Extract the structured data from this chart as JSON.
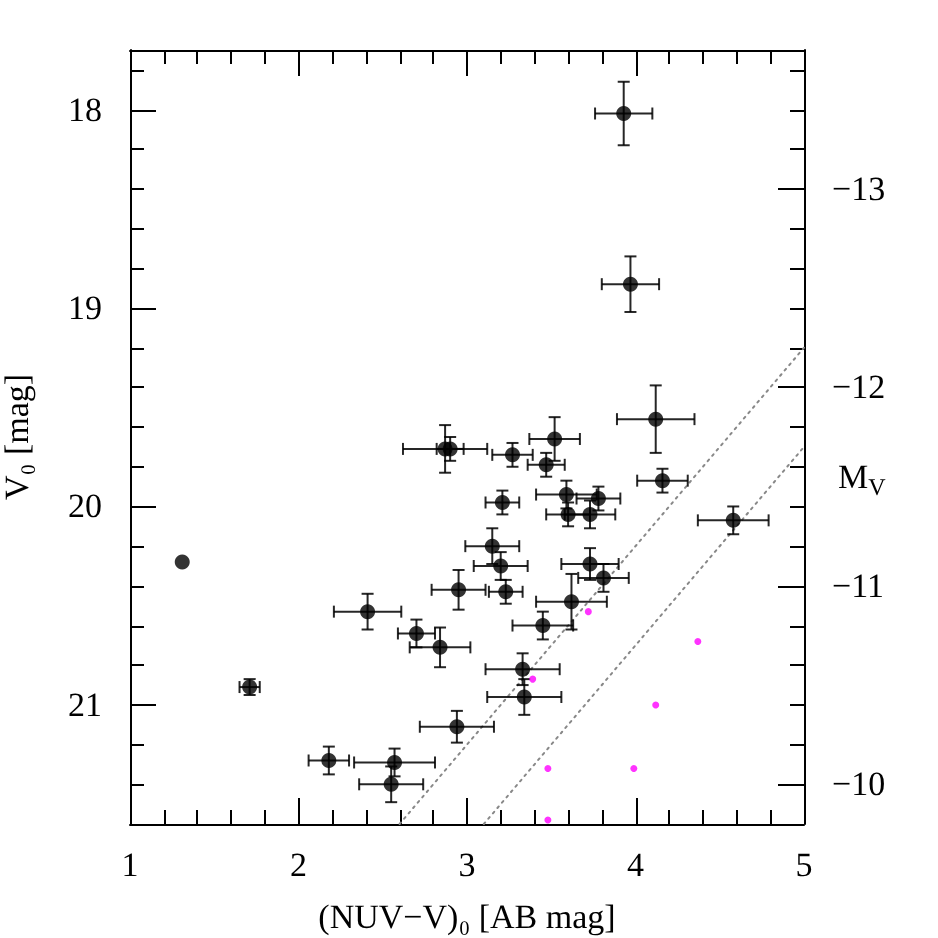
{
  "chart_data": {
    "type": "scatter",
    "xlabel": "(NUV−V)₀ [AB mag]",
    "ylabel": "V₀ [mag]",
    "y2label": "M$_{V}$",
    "xlim": [
      1,
      5
    ],
    "xticks": [
      1,
      {
        "value": 1.2,
        "label": null
      },
      {
        "value": 1.4,
        "label": null
      },
      {
        "value": 1.6,
        "label": null
      },
      {
        "value": 1.8,
        "label": null
      },
      2,
      {
        "value": 2.2,
        "label": null
      },
      {
        "value": 2.4,
        "label": null
      },
      {
        "value": 2.6,
        "label": null
      },
      {
        "value": 2.8,
        "label": null
      },
      3,
      {
        "value": 3.2,
        "label": null
      },
      {
        "value": 3.4,
        "label": null
      },
      {
        "value": 3.6,
        "label": null
      },
      {
        "value": 3.8,
        "label": null
      },
      4,
      {
        "value": 4.2,
        "label": null
      },
      {
        "value": 4.4,
        "label": null
      },
      {
        "value": 4.6,
        "label": null
      },
      {
        "value": 4.8,
        "label": null
      },
      5
    ],
    "ylim": [
      21.6,
      17.7
    ],
    "yticks": [
      {
        "value": 17.8,
        "label": null
      },
      18,
      {
        "value": 18.2,
        "label": null
      },
      {
        "value": 18.4,
        "label": null
      },
      {
        "value": 18.6,
        "label": null
      },
      {
        "value": 18.8,
        "label": null
      },
      19,
      {
        "value": 19.2,
        "label": null
      },
      {
        "value": 19.4,
        "label": null
      },
      {
        "value": 19.6,
        "label": null
      },
      {
        "value": 19.8,
        "label": null
      },
      20,
      {
        "value": 20.2,
        "label": null
      },
      {
        "value": 20.4,
        "label": null
      },
      {
        "value": 20.6,
        "label": null
      },
      {
        "value": 20.8,
        "label": null
      },
      21,
      {
        "value": 21.2,
        "label": null
      },
      {
        "value": 21.4,
        "label": null
      }
    ],
    "y2lim": [
      -9.8,
      -13.7
    ],
    "y2ticks": [
      {
        "value": -13.6,
        "label": null
      },
      {
        "value": -13.4,
        "label": null
      },
      {
        "value": -13.2,
        "label": null
      },
      {
        "value": -13,
        "label": "−13"
      },
      {
        "value": -12.8,
        "label": null
      },
      {
        "value": -12.6,
        "label": null
      },
      {
        "value": -12.4,
        "label": null
      },
      {
        "value": -12.2,
        "label": null
      },
      {
        "value": -12,
        "label": "−12"
      },
      {
        "value": -11.8,
        "label": null
      },
      {
        "value": -11.6,
        "label": null
      },
      {
        "value": -11.4,
        "label": null
      },
      {
        "value": -11.2,
        "label": null
      },
      {
        "value": -11,
        "label": "−11"
      },
      {
        "value": -10.8,
        "label": null
      },
      {
        "value": -10.6,
        "label": null
      },
      {
        "value": -10.4,
        "label": null
      },
      {
        "value": -10.2,
        "label": null
      },
      {
        "value": -10,
        "label": "−10"
      }
    ],
    "grid": false,
    "marker": "circle",
    "series": [
      {
        "color": "#000000",
        "x": [
          3.93,
          3.97,
          4.12,
          3.52,
          3.27,
          3.47,
          2.87,
          2.9,
          3.21,
          3.15,
          3.2,
          2.95,
          3.23,
          2.41,
          2.7,
          2.84,
          3.45,
          3.33,
          3.34,
          2.94,
          2.18,
          2.57,
          2.55,
          1.31,
          1.71,
          4.16,
          3.59,
          3.78,
          3.6,
          3.73,
          4.58,
          3.73,
          3.81,
          3.62
        ],
        "values": [
          18.02,
          18.88,
          19.56,
          19.66,
          19.74,
          19.79,
          19.71,
          19.71,
          19.98,
          20.2,
          20.3,
          20.42,
          20.43,
          20.53,
          20.64,
          20.71,
          20.6,
          20.82,
          20.96,
          21.11,
          21.28,
          21.29,
          21.4,
          20.28,
          20.91,
          19.87,
          19.94,
          19.96,
          20.04,
          20.04,
          20.07,
          20.29,
          20.36,
          20.48
        ],
        "xerrors": [
          0.17,
          0.17,
          0.23,
          0.15,
          0.12,
          0.11,
          0.25,
          0.08,
          0.1,
          0.16,
          0.16,
          0.16,
          0.1,
          0.2,
          0.11,
          0.18,
          0.18,
          0.22,
          0.22,
          0.22,
          0.12,
          0.24,
          0.19,
          null,
          0.06,
          0.15,
          0.18,
          0.13,
          0.13,
          0.15,
          0.21,
          0.17,
          0.15,
          0.21
        ],
        "errors": [
          0.16,
          0.14,
          0.17,
          0.11,
          0.06,
          0.06,
          0.12,
          0.06,
          0.06,
          0.09,
          0.07,
          0.1,
          0.06,
          0.09,
          0.07,
          0.1,
          0.07,
          0.08,
          0.09,
          0.08,
          0.07,
          0.07,
          0.09,
          null,
          0.04,
          0.06,
          0.07,
          0.06,
          0.06,
          0.07,
          0.07,
          0.08,
          0.07,
          0.14
        ]
      },
      {
        "color": "#ff00ff",
        "x": [
          3.72,
          4.37,
          3.39,
          4.12,
          3.48,
          3.99,
          3.48
        ],
        "values": [
          20.53,
          20.68,
          20.87,
          21.0,
          21.32,
          21.32,
          21.58
        ]
      },
      {
        "type": "line",
        "color": "#888888",
        "line_style": "dotted",
        "marker": "none",
        "x": [
          2.6,
          5
        ],
        "values": [
          21.6,
          19.2
        ]
      },
      {
        "type": "line",
        "color": "#888888",
        "line_style": "dotted",
        "marker": "none",
        "x": [
          3.1,
          5
        ],
        "values": [
          21.6,
          19.7
        ]
      }
    ]
  }
}
